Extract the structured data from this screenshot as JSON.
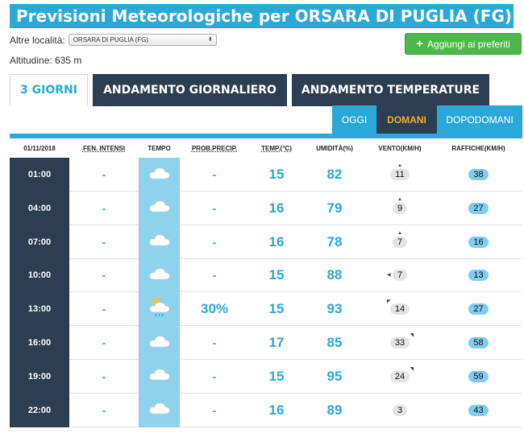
{
  "title": "Previsioni Meteorologiche per ORSARA DI PUGLIA (FG)",
  "location": {
    "label": "Altre località:",
    "selected": "ORSARA DI PUGLIA (FG)"
  },
  "altitude": "Altitudine: 635 m",
  "favorite_button": "Aggiungi ai preferiti",
  "tabs": [
    "3 GIORNI",
    "ANDAMENTO GIORNALIERO",
    "ANDAMENTO TEMPERATURE"
  ],
  "day_tabs": [
    "OGGI",
    "DOMANI",
    "DOPODOMANI"
  ],
  "table": {
    "headers": [
      "01/11/2018",
      "FEN. INTENSI",
      "TEMPO",
      "PROB.PRECIP.",
      "TEMP.(°C)",
      "UMIDITÀ(%)",
      "VENTO(KM/H)",
      "RAFFICHE(KM/H)"
    ],
    "rows": [
      {
        "time": "01:00",
        "fen": "-",
        "weather_icon": "cloud-icon",
        "precip": "-",
        "temp": "15",
        "humidity": "82",
        "wind": "11",
        "wind_dir": "▲",
        "gusts": "38"
      },
      {
        "time": "04:00",
        "fen": "-",
        "weather_icon": "cloud-icon",
        "precip": "-",
        "temp": "16",
        "humidity": "79",
        "wind": "9",
        "wind_dir": "▲",
        "gusts": "27"
      },
      {
        "time": "07:00",
        "fen": "-",
        "weather_icon": "cloud-icon",
        "precip": "-",
        "temp": "16",
        "humidity": "78",
        "wind": "7",
        "wind_dir": "▲",
        "gusts": "16"
      },
      {
        "time": "10:00",
        "fen": "-",
        "weather_icon": "cloud-icon",
        "precip": "-",
        "temp": "15",
        "humidity": "88",
        "wind": "7",
        "wind_dir": "◀",
        "gusts": "13"
      },
      {
        "time": "13:00",
        "fen": "-",
        "weather_icon": "sun-cloud-rain-icon",
        "precip": "30%",
        "temp": "15",
        "humidity": "93",
        "wind": "14",
        "wind_dir": "◤",
        "gusts": "27"
      },
      {
        "time": "16:00",
        "fen": "-",
        "weather_icon": "cloud-icon",
        "precip": "-",
        "temp": "17",
        "humidity": "85",
        "wind": "33",
        "wind_dir": "◥",
        "gusts": "58"
      },
      {
        "time": "19:00",
        "fen": "-",
        "weather_icon": "cloud-icon",
        "precip": "-",
        "temp": "15",
        "humidity": "95",
        "wind": "24",
        "wind_dir": "◥",
        "gusts": "59"
      },
      {
        "time": "22:00",
        "fen": "-",
        "weather_icon": "cloud-icon",
        "precip": "-",
        "temp": "16",
        "humidity": "89",
        "wind": "3",
        "wind_dir": "",
        "gusts": "43"
      }
    ]
  },
  "colors": {
    "primary": "#2aa8d8",
    "dark": "#2c3e50",
    "green": "#4cb84c",
    "orange": "#f0ad2e",
    "tempo_bg": "#8fd2ee"
  }
}
